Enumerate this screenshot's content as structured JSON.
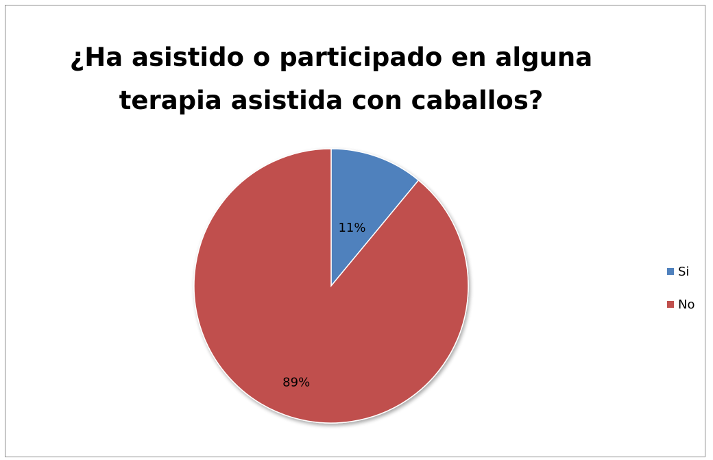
{
  "chart_data": {
    "type": "pie",
    "title_lines": [
      "¿Ha asistido o participado en alguna",
      "terapia asistida con caballos?"
    ],
    "categories": [
      "Si",
      "No"
    ],
    "values": [
      11,
      89
    ],
    "data_labels": [
      "11%",
      "89%"
    ],
    "colors": [
      "#4f81bd",
      "#c0504d"
    ],
    "legend_position": "right"
  }
}
